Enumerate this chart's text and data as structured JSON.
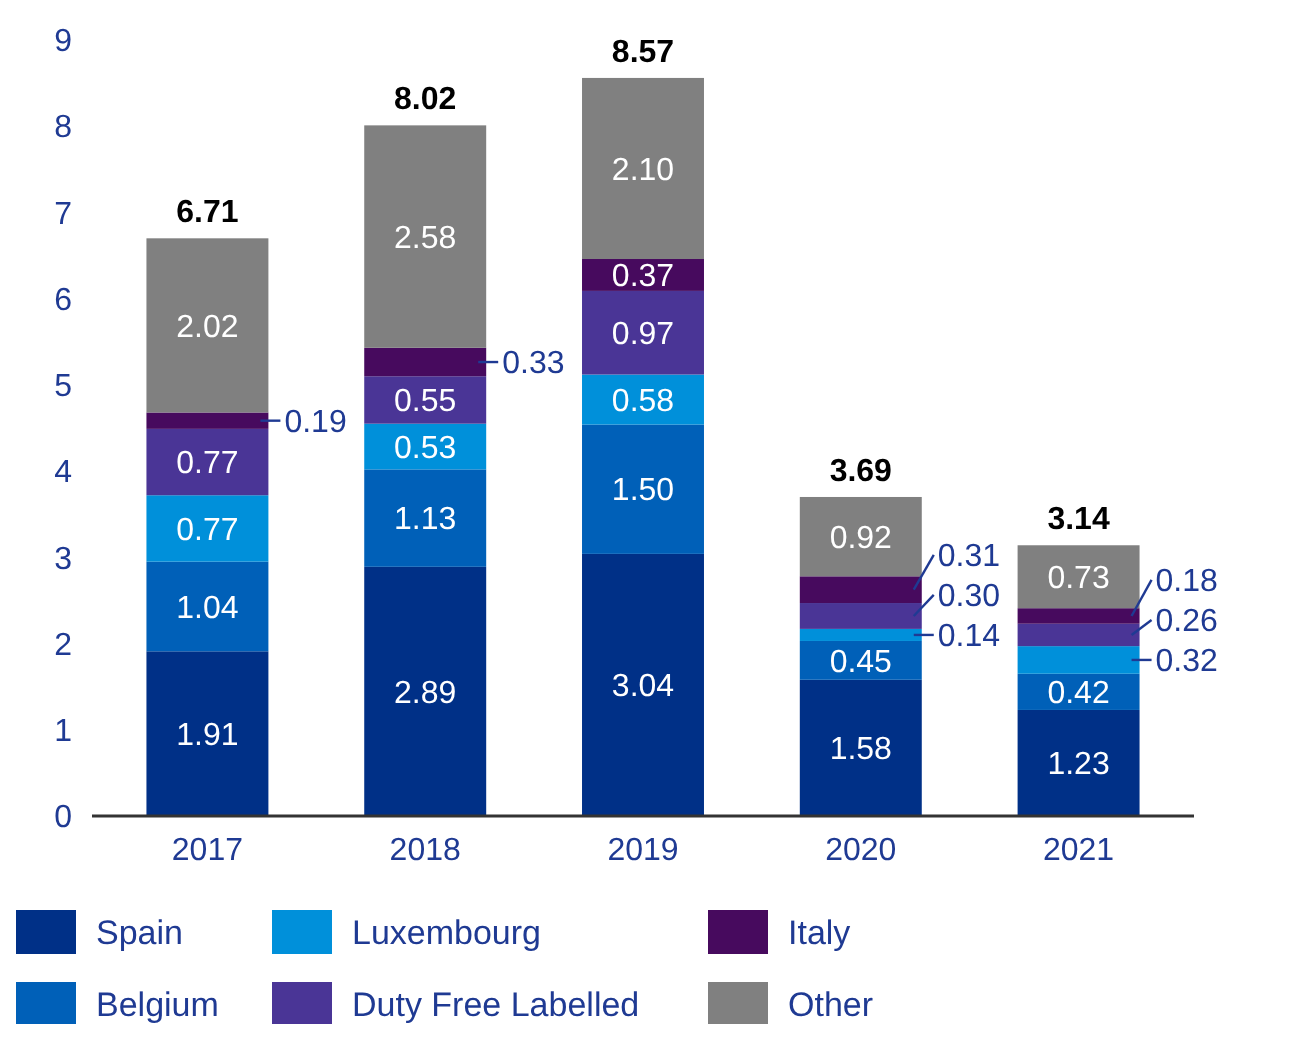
{
  "chart_data": {
    "type": "bar",
    "stacked": true,
    "categories": [
      "2017",
      "2018",
      "2019",
      "2020",
      "2021"
    ],
    "series": [
      {
        "name": "Spain",
        "color": "#003087",
        "values": [
          1.91,
          2.89,
          3.04,
          1.58,
          1.23
        ],
        "value_labels": [
          "1.91",
          "2.89",
          "3.04",
          "1.58",
          "1.23"
        ]
      },
      {
        "name": "Belgium",
        "color": "#0060b8",
        "values": [
          1.04,
          1.13,
          1.5,
          0.45,
          0.42
        ],
        "value_labels": [
          "1.04",
          "1.13",
          "1.50",
          "0.45",
          "0.42"
        ]
      },
      {
        "name": "Luxembourg",
        "color": "#0090da",
        "values": [
          0.77,
          0.53,
          0.58,
          0.14,
          0.32
        ],
        "value_labels": [
          "0.77",
          "0.53",
          "0.58",
          "0.14",
          "0.32"
        ]
      },
      {
        "name": "Duty Free Labelled",
        "color": "#4a3596",
        "values": [
          0.77,
          0.55,
          0.97,
          0.3,
          0.26
        ],
        "value_labels": [
          "0.77",
          "0.55",
          "0.97",
          "0.30",
          "0.26"
        ]
      },
      {
        "name": "Italy",
        "color": "#470a5e",
        "values": [
          0.19,
          0.33,
          0.37,
          0.31,
          0.18
        ],
        "value_labels": [
          "0.19",
          "0.33",
          "0.37",
          "0.31",
          "0.18"
        ]
      },
      {
        "name": "Other",
        "color": "#808080",
        "values": [
          2.02,
          2.58,
          2.1,
          0.92,
          0.73
        ],
        "value_labels": [
          "2.02",
          "2.58",
          "2.10",
          "0.92",
          "0.73"
        ]
      }
    ],
    "totals": [
      "6.71",
      "8.02",
      "8.57",
      "3.69",
      "3.14"
    ],
    "ylim": [
      0,
      9
    ],
    "yticks": [
      0,
      1,
      2,
      3,
      4,
      5,
      6,
      7,
      8,
      9
    ],
    "legend": "bottom"
  }
}
